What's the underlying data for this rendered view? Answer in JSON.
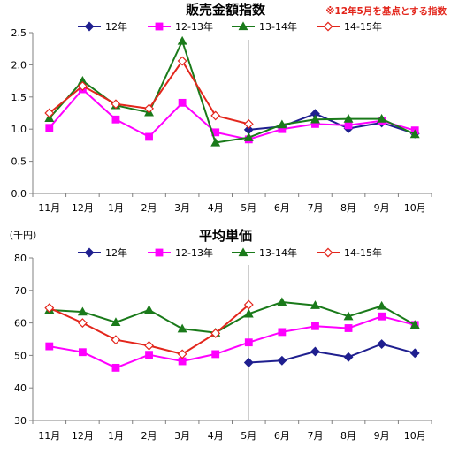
{
  "colors": {
    "12年": "#1f1f8f",
    "12-13年": "#ff00ff",
    "13-14年": "#1a7a1a",
    "14-15年": "#e3261c",
    "note": "#e3261c",
    "axis": "#808080",
    "grid": "#c0c0c0"
  },
  "chart_data": [
    {
      "type": "line",
      "title": "販売金額指数",
      "note": "※12年5月を基点とする指数",
      "unit_label": "",
      "categories": [
        "11月",
        "12月",
        "1月",
        "2月",
        "3月",
        "4月",
        "5月",
        "6月",
        "7月",
        "8月",
        "9月",
        "10月"
      ],
      "ylim": [
        0,
        2.5
      ],
      "yticks": [
        "0.0",
        "0.5",
        "1.0",
        "1.5",
        "2.0",
        "2.5"
      ],
      "grid": false,
      "legend": "top",
      "series": [
        {
          "name": "12年",
          "marker": "diamond",
          "filled": true,
          "values": [
            null,
            null,
            null,
            null,
            null,
            null,
            0.99,
            1.04,
            1.24,
            1.01,
            1.1,
            0.93
          ]
        },
        {
          "name": "12-13年",
          "marker": "square",
          "filled": true,
          "values": [
            1.02,
            1.62,
            1.15,
            0.88,
            1.41,
            0.95,
            0.84,
            1.0,
            1.08,
            1.06,
            1.13,
            0.98
          ]
        },
        {
          "name": "13-14年",
          "marker": "triangle",
          "filled": true,
          "values": [
            1.17,
            1.75,
            1.37,
            1.26,
            2.37,
            0.79,
            0.87,
            1.07,
            1.15,
            1.16,
            1.16,
            0.92
          ]
        },
        {
          "name": "14-15年",
          "marker": "diamond",
          "filled": false,
          "values": [
            1.25,
            1.67,
            1.39,
            1.32,
            2.06,
            1.21,
            1.08,
            null,
            null,
            null,
            null,
            null
          ]
        }
      ]
    },
    {
      "type": "line",
      "title": "平均単価",
      "note": "",
      "unit_label": "（千円）",
      "categories": [
        "11月",
        "12月",
        "1月",
        "2月",
        "3月",
        "4月",
        "5月",
        "6月",
        "7月",
        "8月",
        "9月",
        "10月"
      ],
      "ylim": [
        30,
        80
      ],
      "yticks": [
        "30",
        "40",
        "50",
        "60",
        "70",
        "80"
      ],
      "grid": false,
      "legend": "top",
      "series": [
        {
          "name": "12年",
          "marker": "diamond",
          "filled": true,
          "values": [
            null,
            null,
            null,
            null,
            null,
            null,
            47.8,
            48.4,
            51.2,
            49.5,
            53.5,
            50.7
          ]
        },
        {
          "name": "12-13年",
          "marker": "square",
          "filled": true,
          "values": [
            52.8,
            51.0,
            46.2,
            50.2,
            48.2,
            50.4,
            54.0,
            57.2,
            59.0,
            58.4,
            62.0,
            59.4
          ]
        },
        {
          "name": "13-14年",
          "marker": "triangle",
          "filled": true,
          "values": [
            64.0,
            63.4,
            60.2,
            64.0,
            58.2,
            57.0,
            62.8,
            66.4,
            65.4,
            62.0,
            65.2,
            59.4
          ]
        },
        {
          "name": "14-15年",
          "marker": "diamond",
          "filled": false,
          "values": [
            64.6,
            60.0,
            54.8,
            53.0,
            50.4,
            56.8,
            65.6,
            null,
            null,
            null,
            null,
            null
          ]
        }
      ]
    }
  ]
}
